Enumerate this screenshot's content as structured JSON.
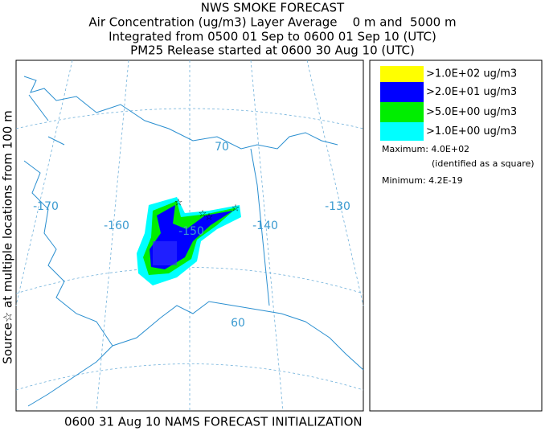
{
  "header": {
    "title": "NWS SMOKE FORECAST",
    "lines": [
      "Air Concentration (ug/m3) Layer Average    0 m and  5000 m",
      "Integrated from 0500 01 Sep to 0600 01 Sep 10 (UTC)",
      "PM25 Release started at 0600 30 Aug 10 (UTC)"
    ]
  },
  "side_label": "Source☆ at multiple locations from 100 m",
  "legend": {
    "entries": [
      {
        "label": ">1.0E+02 ug/m3",
        "color": "#ffff00"
      },
      {
        "label": ">2.0E+01 ug/m3",
        "color": "#0000ff"
      },
      {
        "label": ">5.0E+00 ug/m3",
        "color": "#00ee00"
      },
      {
        "label": ">1.0E+00 ug/m3",
        "color": "#00ffff"
      }
    ],
    "maximum": "Maximum: 4.0E+02",
    "maximum_note": "(identified as a square)",
    "minimum": "Minimum: 4.2E-19"
  },
  "map": {
    "lon_labels": [
      "-170",
      "-160",
      "-150",
      "-140",
      "-130"
    ],
    "lat_labels": [
      "70",
      "60"
    ]
  },
  "footer": "0600 31 Aug 10 NAMS FORECAST INITIALIZATION"
}
